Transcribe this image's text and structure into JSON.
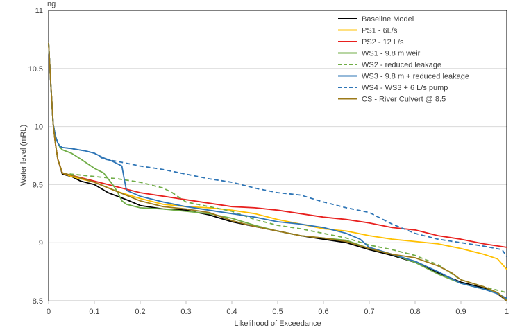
{
  "chart_data": {
    "type": "line",
    "title": "ng",
    "xlabel": "Likelihood of Exceedance",
    "ylabel": "Water level (mRL)",
    "xlim": [
      0,
      1
    ],
    "ylim": [
      8.5,
      11
    ],
    "x_ticks": [
      "0",
      "0.1",
      "0.2",
      "0.3",
      "0.4",
      "0.5",
      "0.6",
      "0.7",
      "0.8",
      "0.9",
      "1"
    ],
    "y_ticks": [
      "8.5",
      "9",
      "9.5",
      "10",
      "10.5",
      "11"
    ],
    "grid": "horizontal",
    "legend_position": "top-right",
    "series": [
      {
        "name": "Baseline Model",
        "color": "#000000",
        "dash": "solid",
        "x": [
          0,
          0.005,
          0.01,
          0.015,
          0.02,
          0.03,
          0.05,
          0.07,
          0.1,
          0.13,
          0.15,
          0.17,
          0.2,
          0.25,
          0.3,
          0.35,
          0.4,
          0.45,
          0.5,
          0.55,
          0.6,
          0.65,
          0.7,
          0.75,
          0.8,
          0.85,
          0.9,
          0.95,
          0.98,
          1
        ],
        "values": [
          10.72,
          10.35,
          10.02,
          9.85,
          9.72,
          9.59,
          9.57,
          9.53,
          9.5,
          9.43,
          9.4,
          9.37,
          9.32,
          9.29,
          9.28,
          9.24,
          9.18,
          9.14,
          9.1,
          9.06,
          9.03,
          9,
          8.94,
          8.89,
          8.83,
          8.74,
          8.66,
          8.61,
          8.56,
          8.5
        ]
      },
      {
        "name": "PS1 - 6L/s",
        "color": "#FFC000",
        "dash": "solid",
        "x": [
          0,
          0.005,
          0.01,
          0.015,
          0.02,
          0.03,
          0.05,
          0.08,
          0.1,
          0.15,
          0.2,
          0.25,
          0.3,
          0.35,
          0.4,
          0.45,
          0.5,
          0.55,
          0.6,
          0.65,
          0.7,
          0.75,
          0.8,
          0.85,
          0.9,
          0.95,
          0.98,
          1
        ],
        "values": [
          10.72,
          10.35,
          10.02,
          9.85,
          9.72,
          9.6,
          9.57,
          9.54,
          9.52,
          9.44,
          9.38,
          9.33,
          9.31,
          9.3,
          9.28,
          9.25,
          9.2,
          9.16,
          9.12,
          9.1,
          9.06,
          9.03,
          9.01,
          8.99,
          8.95,
          8.9,
          8.86,
          8.77
        ]
      },
      {
        "name": "PS2 - 12 L/s",
        "color": "#E8201E",
        "dash": "solid",
        "x": [
          0,
          0.005,
          0.01,
          0.015,
          0.02,
          0.03,
          0.05,
          0.08,
          0.1,
          0.15,
          0.2,
          0.25,
          0.3,
          0.35,
          0.4,
          0.45,
          0.5,
          0.55,
          0.6,
          0.65,
          0.7,
          0.75,
          0.8,
          0.85,
          0.9,
          0.95,
          1
        ],
        "values": [
          10.72,
          10.35,
          10.02,
          9.85,
          9.72,
          9.6,
          9.58,
          9.55,
          9.53,
          9.48,
          9.43,
          9.4,
          9.37,
          9.34,
          9.31,
          9.3,
          9.28,
          9.25,
          9.22,
          9.2,
          9.17,
          9.13,
          9.11,
          9.06,
          9.03,
          8.99,
          8.96
        ]
      },
      {
        "name": "WS1 - 9.8 m weir",
        "color": "#70AD47",
        "dash": "solid",
        "x": [
          0,
          0.005,
          0.01,
          0.015,
          0.02,
          0.025,
          0.03,
          0.05,
          0.07,
          0.1,
          0.12,
          0.14,
          0.15,
          0.16,
          0.17,
          0.2,
          0.25,
          0.3,
          0.35,
          0.4,
          0.45,
          0.5,
          0.55,
          0.6,
          0.65,
          0.7,
          0.75,
          0.8,
          0.85,
          0.9,
          0.95,
          0.98,
          1
        ],
        "values": [
          10.72,
          10.35,
          10.02,
          9.92,
          9.86,
          9.82,
          9.8,
          9.77,
          9.72,
          9.64,
          9.6,
          9.5,
          9.44,
          9.36,
          9.33,
          9.3,
          9.29,
          9.27,
          9.25,
          9.21,
          9.15,
          9.1,
          9.06,
          9.04,
          9.02,
          8.95,
          8.9,
          8.83,
          8.73,
          8.65,
          8.6,
          8.57,
          8.51
        ]
      },
      {
        "name": "WS2 - reduced leakage",
        "color": "#70AD47",
        "dash": "dashed",
        "x": [
          0,
          0.005,
          0.01,
          0.015,
          0.02,
          0.03,
          0.05,
          0.1,
          0.15,
          0.2,
          0.25,
          0.27,
          0.3,
          0.35,
          0.4,
          0.45,
          0.5,
          0.55,
          0.6,
          0.65,
          0.7,
          0.75,
          0.8,
          0.85,
          0.9,
          0.95,
          1
        ],
        "values": [
          10.72,
          10.35,
          10.02,
          9.85,
          9.72,
          9.6,
          9.59,
          9.57,
          9.55,
          9.52,
          9.47,
          9.43,
          9.35,
          9.31,
          9.27,
          9.2,
          9.15,
          9.12,
          9.08,
          9.04,
          8.98,
          8.94,
          8.89,
          8.81,
          8.68,
          8.62,
          8.57
        ]
      },
      {
        "name": "WS3 - 9.8 m + reduced leakage",
        "color": "#2E75B6",
        "dash": "solid",
        "x": [
          0,
          0.005,
          0.01,
          0.015,
          0.02,
          0.025,
          0.03,
          0.05,
          0.08,
          0.1,
          0.12,
          0.14,
          0.16,
          0.165,
          0.17,
          0.2,
          0.25,
          0.3,
          0.35,
          0.4,
          0.45,
          0.5,
          0.55,
          0.6,
          0.65,
          0.68,
          0.7,
          0.75,
          0.8,
          0.85,
          0.9,
          0.95,
          0.98,
          1
        ],
        "values": [
          10.72,
          10.35,
          10.02,
          9.92,
          9.86,
          9.83,
          9.82,
          9.81,
          9.79,
          9.77,
          9.73,
          9.7,
          9.66,
          9.55,
          9.45,
          9.4,
          9.35,
          9.31,
          9.28,
          9.25,
          9.22,
          9.18,
          9.16,
          9.13,
          9.08,
          9.03,
          8.96,
          8.9,
          8.84,
          8.75,
          8.65,
          8.6,
          8.56,
          8.52
        ]
      },
      {
        "name": "WS4 - WS3 + 6 L/s pump",
        "color": "#2E75B6",
        "dash": "dashed",
        "x": [
          0,
          0.005,
          0.01,
          0.015,
          0.02,
          0.025,
          0.03,
          0.05,
          0.08,
          0.1,
          0.12,
          0.15,
          0.2,
          0.25,
          0.3,
          0.35,
          0.4,
          0.45,
          0.5,
          0.55,
          0.6,
          0.65,
          0.7,
          0.75,
          0.8,
          0.85,
          0.9,
          0.95,
          0.99,
          1
        ],
        "values": [
          10.72,
          10.35,
          10.02,
          9.92,
          9.86,
          9.83,
          9.82,
          9.81,
          9.79,
          9.77,
          9.72,
          9.7,
          9.66,
          9.63,
          9.59,
          9.55,
          9.52,
          9.47,
          9.43,
          9.41,
          9.35,
          9.3,
          9.26,
          9.16,
          9.08,
          9.03,
          9,
          8.97,
          8.94,
          8.88
        ]
      },
      {
        "name": "CS - River Culvert @ 8.5",
        "color": "#9C7A1A",
        "dash": "solid",
        "x": [
          0,
          0.005,
          0.01,
          0.015,
          0.02,
          0.03,
          0.05,
          0.1,
          0.15,
          0.2,
          0.25,
          0.3,
          0.35,
          0.4,
          0.45,
          0.5,
          0.55,
          0.6,
          0.65,
          0.7,
          0.75,
          0.8,
          0.85,
          0.88,
          0.9,
          0.95,
          0.98,
          1
        ],
        "values": [
          10.72,
          10.35,
          10.02,
          9.85,
          9.72,
          9.6,
          9.58,
          9.52,
          9.44,
          9.36,
          9.31,
          9.29,
          9.26,
          9.19,
          9.14,
          9.1,
          9.06,
          9.04,
          9.01,
          8.95,
          8.9,
          8.87,
          8.8,
          8.74,
          8.68,
          8.62,
          8.57,
          8.5
        ]
      }
    ]
  }
}
